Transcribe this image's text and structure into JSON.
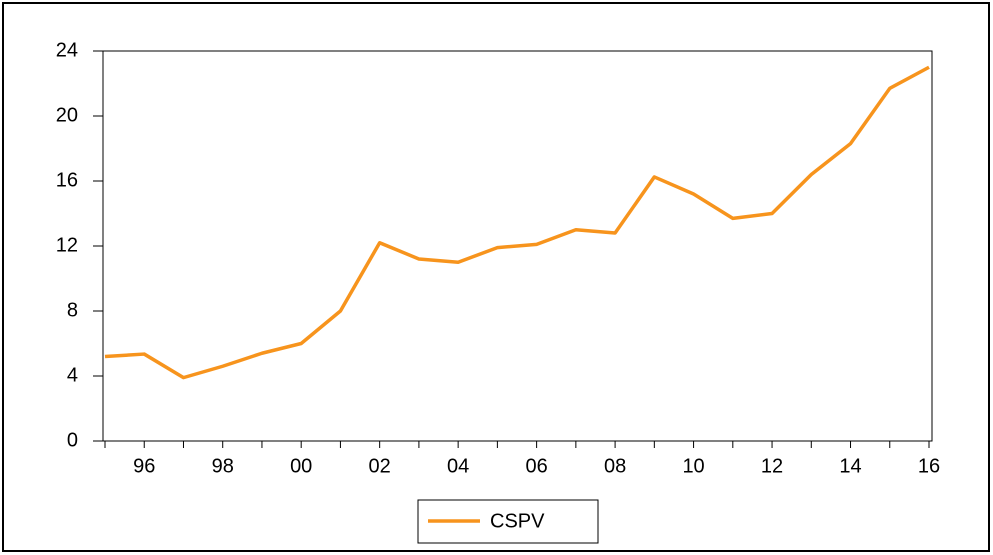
{
  "chart_data": {
    "type": "line",
    "categories": [
      null,
      "96",
      null,
      "98",
      null,
      "00",
      null,
      "02",
      null,
      "04",
      null,
      "06",
      null,
      "08",
      null,
      "10",
      null,
      "12",
      null,
      "14",
      null,
      "16"
    ],
    "series": [
      {
        "name": "CSPV",
        "color": "#f7941d",
        "values": [
          5.2,
          5.35,
          3.9,
          4.6,
          5.4,
          6.0,
          8.0,
          12.2,
          11.2,
          11.0,
          11.9,
          12.1,
          13.0,
          12.8,
          16.25,
          15.2,
          13.7,
          14.0,
          16.4,
          18.3,
          21.7,
          23.0
        ]
      }
    ],
    "ylim": [
      0,
      24
    ],
    "yticks": [
      0,
      4,
      8,
      12,
      16,
      20,
      24
    ],
    "grid": false,
    "legend": "bottom"
  }
}
